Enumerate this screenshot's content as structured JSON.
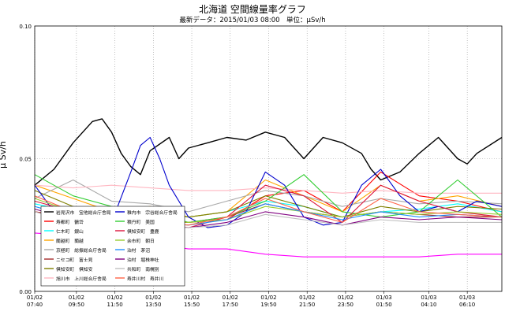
{
  "chart_data": {
    "type": "line",
    "title": "北海道 空間線量率グラフ",
    "subtitle": "最新データ：2015/01/03 08:00　単位：μSv/h",
    "ylabel": "μ Sv/h",
    "xlabel": "",
    "ylim": [
      0,
      0.1
    ],
    "yticks": [
      "0.00",
      "0.05",
      "0.10"
    ],
    "xlim": [
      0,
      24.3
    ],
    "xticks": [
      {
        "x": 0,
        "date": "01/02",
        "time": "07:40"
      },
      {
        "x": 2.17,
        "date": "01/02",
        "time": "09:50"
      },
      {
        "x": 4.17,
        "date": "01/02",
        "time": "11:50"
      },
      {
        "x": 6.17,
        "date": "01/02",
        "time": "13:50"
      },
      {
        "x": 8.17,
        "date": "01/02",
        "time": "15:50"
      },
      {
        "x": 10.17,
        "date": "01/02",
        "time": "17:50"
      },
      {
        "x": 12.17,
        "date": "01/02",
        "time": "19:50"
      },
      {
        "x": 14.17,
        "date": "01/02",
        "time": "21:50"
      },
      {
        "x": 16.17,
        "date": "01/02",
        "time": "23:50"
      },
      {
        "x": 18.17,
        "date": "01/03",
        "time": "01:50"
      },
      {
        "x": 20.5,
        "date": "01/03",
        "time": "04:10"
      },
      {
        "x": 22.5,
        "date": "01/03",
        "time": "06:10"
      }
    ],
    "grid": true,
    "legend_position": "bottom-left",
    "series": [
      {
        "name": "岩見沢市　宝他総合庁舎局",
        "color": "#000000",
        "x": [
          0,
          1,
          2,
          3,
          3.5,
          4,
          4.5,
          5,
          5.5,
          6,
          7,
          7.5,
          8,
          9,
          10,
          11,
          12,
          13,
          14,
          15,
          16,
          17,
          17.5,
          18,
          19,
          20,
          21,
          22,
          22.5,
          23,
          24.3
        ],
        "y": [
          0.04,
          0.046,
          0.056,
          0.064,
          0.065,
          0.06,
          0.052,
          0.047,
          0.044,
          0.053,
          0.058,
          0.05,
          0.054,
          0.056,
          0.058,
          0.057,
          0.06,
          0.058,
          0.05,
          0.058,
          0.056,
          0.052,
          0.046,
          0.042,
          0.045,
          0.052,
          0.058,
          0.05,
          0.048,
          0.052,
          0.058
        ]
      },
      {
        "name": "寿都町　鶴岱",
        "color": "#ff0000",
        "x": [
          0,
          2,
          4,
          6,
          8,
          10,
          12,
          14,
          16,
          18,
          20,
          22,
          24.3
        ],
        "y": [
          0.03,
          0.028,
          0.027,
          0.026,
          0.026,
          0.027,
          0.036,
          0.038,
          0.03,
          0.045,
          0.036,
          0.034,
          0.03
        ]
      },
      {
        "name": "仁木町　銀山",
        "color": "#00ffff",
        "x": [
          0,
          2,
          4,
          6,
          8,
          10,
          12,
          14,
          16,
          18,
          20,
          22,
          24.3
        ],
        "y": [
          0.033,
          0.03,
          0.029,
          0.03,
          0.028,
          0.03,
          0.034,
          0.032,
          0.028,
          0.03,
          0.031,
          0.033,
          0.03
        ]
      },
      {
        "name": "蘭越町　蘭越",
        "color": "#ffa500",
        "x": [
          0,
          2,
          4,
          6,
          8,
          10,
          12,
          14,
          16,
          18,
          20,
          22,
          24.3
        ],
        "y": [
          0.04,
          0.035,
          0.03,
          0.032,
          0.028,
          0.03,
          0.042,
          0.036,
          0.03,
          0.04,
          0.034,
          0.036,
          0.032
        ]
      },
      {
        "name": "京極町　総振総合庁舎局",
        "color": "#a9a9a9",
        "x": [
          0,
          2,
          4,
          6,
          8,
          10,
          12,
          14,
          16,
          18,
          20,
          22,
          24.3
        ],
        "y": [
          0.035,
          0.042,
          0.034,
          0.033,
          0.03,
          0.034,
          0.038,
          0.036,
          0.032,
          0.035,
          0.033,
          0.034,
          0.033
        ]
      },
      {
        "name": "ニセコ町　富士見",
        "color": "#a52a2a",
        "x": [
          0,
          2,
          4,
          6,
          8,
          10,
          12,
          14,
          16,
          18,
          20,
          22,
          24.3
        ],
        "y": [
          0.03,
          0.028,
          0.026,
          0.027,
          0.026,
          0.028,
          0.033,
          0.03,
          0.028,
          0.03,
          0.029,
          0.028,
          0.028
        ]
      },
      {
        "name": "倶知安町　倶知安",
        "color": "#808000",
        "x": [
          0,
          2,
          4,
          6,
          8,
          10,
          12,
          14,
          16,
          18,
          20,
          22,
          24.3
        ],
        "y": [
          0.038,
          0.032,
          0.029,
          0.03,
          0.028,
          0.03,
          0.036,
          0.032,
          0.028,
          0.032,
          0.03,
          0.032,
          0.031
        ]
      },
      {
        "name": "旭川市　上川総合庁舎局",
        "color": "#ffb6c1",
        "x": [
          0,
          2,
          4,
          6,
          8,
          10,
          12,
          14,
          16,
          18,
          20,
          22,
          24.3
        ],
        "y": [
          0.04,
          0.039,
          0.04,
          0.039,
          0.038,
          0.038,
          0.039,
          0.038,
          0.037,
          0.038,
          0.037,
          0.037,
          0.037
        ]
      },
      {
        "name": "稚内市　宗谷総合庁舎局",
        "color": "#0000cd",
        "x": [
          0,
          1,
          2,
          3,
          4,
          5,
          5.5,
          6,
          6.5,
          7,
          8,
          9,
          10,
          11,
          12,
          13,
          14,
          15,
          16,
          17,
          18,
          19,
          20,
          21,
          22,
          23,
          24.3
        ],
        "y": [
          0.04,
          0.03,
          0.026,
          0.024,
          0.026,
          0.045,
          0.055,
          0.058,
          0.05,
          0.04,
          0.028,
          0.024,
          0.025,
          0.03,
          0.045,
          0.04,
          0.028,
          0.025,
          0.026,
          0.04,
          0.046,
          0.036,
          0.03,
          0.032,
          0.03,
          0.034,
          0.032
        ]
      },
      {
        "name": "積丹町　美国",
        "color": "#32cd32",
        "x": [
          0,
          2,
          4,
          6,
          8,
          10,
          12,
          14,
          16,
          18,
          20,
          22,
          24.3
        ],
        "y": [
          0.044,
          0.036,
          0.032,
          0.03,
          0.026,
          0.028,
          0.034,
          0.044,
          0.03,
          0.028,
          0.03,
          0.042,
          0.028
        ]
      },
      {
        "name": "倶知安町　豊鹿",
        "color": "#dc143c",
        "x": [
          0,
          2,
          4,
          6,
          8,
          10,
          12,
          14,
          16,
          18,
          20,
          22,
          24.3
        ],
        "y": [
          0.034,
          0.03,
          0.028,
          0.026,
          0.024,
          0.028,
          0.04,
          0.036,
          0.026,
          0.04,
          0.034,
          0.03,
          0.028
        ]
      },
      {
        "name": "余市町　朝日",
        "color": "#9acd32",
        "x": [
          0,
          2,
          4,
          6,
          8,
          10,
          12,
          14,
          16,
          18,
          20,
          22,
          24.3
        ],
        "y": [
          0.035,
          0.03,
          0.028,
          0.027,
          0.026,
          0.027,
          0.032,
          0.03,
          0.028,
          0.03,
          0.029,
          0.03,
          0.029
        ]
      },
      {
        "name": "泊村　茅沼",
        "color": "#1e90ff",
        "x": [
          0,
          2,
          4,
          6,
          8,
          10,
          12,
          14,
          16,
          18,
          20,
          22,
          24.3
        ],
        "y": [
          0.032,
          0.028,
          0.026,
          0.026,
          0.025,
          0.027,
          0.033,
          0.03,
          0.027,
          0.03,
          0.028,
          0.029,
          0.028
        ]
      },
      {
        "name": "泊村　堀株神社",
        "color": "#800080",
        "x": [
          0,
          2,
          4,
          6,
          8,
          10,
          12,
          14,
          16,
          18,
          20,
          22,
          24.3
        ],
        "y": [
          0.031,
          0.027,
          0.025,
          0.025,
          0.024,
          0.026,
          0.03,
          0.028,
          0.025,
          0.028,
          0.027,
          0.028,
          0.027
        ]
      },
      {
        "name": "共和町　南幌別",
        "color": "#c0c0c0",
        "x": [
          0,
          2,
          4,
          6,
          8,
          10,
          12,
          14,
          16,
          18,
          20,
          22,
          24.3
        ],
        "y": [
          0.03,
          0.026,
          0.025,
          0.025,
          0.024,
          0.025,
          0.029,
          0.027,
          0.025,
          0.027,
          0.026,
          0.026,
          0.026
        ]
      },
      {
        "name": "寿井川村　寿井川",
        "color": "#ff6347",
        "x": [
          0,
          2,
          4,
          6,
          8,
          10,
          12,
          14,
          16,
          18,
          20,
          22,
          24.3
        ],
        "y": [
          0.036,
          0.03,
          0.027,
          0.026,
          0.025,
          0.028,
          0.035,
          0.03,
          0.026,
          0.035,
          0.03,
          0.029,
          0.028
        ]
      },
      {
        "name": "",
        "color": "#ff00ff",
        "x": [
          0,
          2,
          4,
          6,
          8,
          10,
          12,
          14,
          16,
          18,
          20,
          22,
          24.3
        ],
        "y": [
          0.022,
          0.021,
          0.02,
          0.018,
          0.016,
          0.016,
          0.014,
          0.013,
          0.013,
          0.013,
          0.013,
          0.014,
          0.014
        ]
      }
    ]
  }
}
